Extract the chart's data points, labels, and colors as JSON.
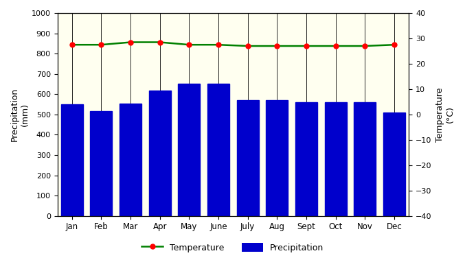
{
  "months": [
    "Jan",
    "Feb",
    "Mar",
    "Apr",
    "May",
    "June",
    "July",
    "Aug",
    "Sept",
    "Oct",
    "Nov",
    "Dec"
  ],
  "precipitation": [
    550,
    515,
    555,
    618,
    652,
    652,
    570,
    572,
    560,
    560,
    560,
    510
  ],
  "temperature": [
    27.5,
    27.5,
    28.5,
    28.5,
    27.5,
    27.5,
    27.0,
    27.0,
    27.0,
    27.0,
    27.0,
    27.5
  ],
  "bar_color": "#0000cc",
  "line_color": "#008000",
  "marker_color": "#ff0000",
  "background_color": "#fffff0",
  "ylabel_left": "Precipitation\n(mm)",
  "ylabel_right": "Temperature\n(°C)",
  "ylim_left": [
    0,
    1000
  ],
  "ylim_right": [
    -40,
    40
  ],
  "yticks_left": [
    0,
    100,
    200,
    300,
    400,
    500,
    600,
    700,
    800,
    900,
    1000
  ],
  "yticks_right": [
    -40,
    -30,
    -20,
    -10,
    0,
    10,
    20,
    30,
    40
  ],
  "legend_labels": [
    "Temperature",
    "Precipitation"
  ],
  "figsize": [
    6.77,
    3.79
  ],
  "dpi": 100
}
